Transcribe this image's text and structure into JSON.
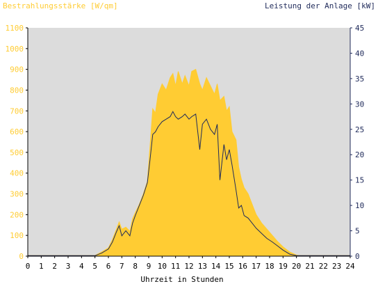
{
  "chart_data": {
    "type": "area",
    "title_left": "Bestrahlungsstärke [W/qm]",
    "title_right": "Leistung der Anlage [kW]",
    "xlabel": "Uhrzeit in Stunden",
    "x_ticks": [
      "0",
      "1",
      "2",
      "3",
      "4",
      "5",
      "6",
      "7",
      "8",
      "9",
      "10",
      "11",
      "12",
      "13",
      "14",
      "15",
      "16",
      "17",
      "18",
      "19",
      "20",
      "21",
      "22",
      "23",
      "24"
    ],
    "y_left_ticks": [
      "0",
      "100",
      "200",
      "300",
      "400",
      "500",
      "600",
      "700",
      "800",
      "900",
      "1000",
      "1100"
    ],
    "y_right_ticks": [
      "0",
      "5",
      "10",
      "15",
      "20",
      "25",
      "30",
      "35",
      "40",
      "45"
    ],
    "y_left_range": [
      0,
      1100
    ],
    "y_right_range": [
      0,
      45
    ],
    "x_range": [
      0,
      24
    ],
    "grid": false,
    "colors": {
      "irradiance": "#ffcc33",
      "power": "#1f2a5a",
      "left_axis": "#ffcc33",
      "right_axis": "#1f2a5a",
      "plot_bg": "#dcdcdc",
      "frame": "#000000"
    },
    "series": [
      {
        "name": "Bestrahlungsstärke [W/qm]",
        "axis": "left",
        "x": [
          0,
          5.0,
          5.5,
          6.0,
          6.3,
          6.6,
          6.8,
          7.0,
          7.3,
          7.6,
          7.8,
          8.0,
          8.3,
          8.6,
          8.9,
          9.1,
          9.3,
          9.5,
          9.7,
          10.0,
          10.3,
          10.6,
          10.8,
          11.0,
          11.2,
          11.5,
          11.7,
          12.0,
          12.2,
          12.5,
          12.8,
          13.0,
          13.3,
          13.6,
          13.9,
          14.1,
          14.3,
          14.6,
          14.8,
          15.0,
          15.2,
          15.5,
          15.7,
          15.9,
          16.1,
          16.4,
          16.7,
          17.0,
          17.4,
          17.8,
          18.2,
          18.6,
          19.0,
          19.5,
          20.0,
          20.2,
          24.0
        ],
        "y": [
          3,
          3,
          20,
          40,
          80,
          130,
          165,
          130,
          140,
          120,
          180,
          210,
          250,
          300,
          360,
          530,
          710,
          690,
          780,
          830,
          800,
          860,
          880,
          820,
          890,
          830,
          870,
          820,
          890,
          900,
          830,
          800,
          860,
          820,
          780,
          830,
          750,
          770,
          700,
          720,
          600,
          560,
          430,
          370,
          330,
          300,
          250,
          200,
          160,
          130,
          100,
          70,
          45,
          20,
          5,
          3,
          3
        ]
      },
      {
        "name": "Leistung der Anlage [kW]",
        "axis": "right",
        "x": [
          0,
          5.0,
          5.5,
          6.0,
          6.3,
          6.6,
          6.8,
          7.0,
          7.3,
          7.6,
          7.8,
          8.0,
          8.3,
          8.6,
          8.9,
          9.1,
          9.3,
          9.5,
          9.7,
          10.0,
          10.3,
          10.6,
          10.8,
          11.0,
          11.2,
          11.5,
          11.7,
          12.0,
          12.2,
          12.5,
          12.8,
          13.0,
          13.3,
          13.6,
          13.9,
          14.1,
          14.3,
          14.6,
          14.8,
          15.0,
          15.2,
          15.5,
          15.7,
          15.9,
          16.1,
          16.4,
          16.7,
          17.0,
          17.4,
          17.8,
          18.2,
          18.6,
          19.0,
          19.5,
          20.0,
          20.2,
          24.0
        ],
        "y": [
          0.1,
          0.1,
          0.6,
          1.4,
          2.8,
          4.8,
          6.0,
          4.0,
          5.0,
          4.0,
          6.5,
          8.0,
          10.0,
          12.0,
          14.5,
          19.0,
          24.0,
          24.5,
          25.5,
          26.5,
          27.0,
          27.5,
          28.5,
          27.5,
          27.0,
          27.5,
          28.0,
          27.0,
          27.5,
          28.0,
          21.0,
          26.0,
          27.0,
          25.0,
          24.0,
          26.0,
          15.0,
          22.0,
          19.0,
          21.0,
          18.0,
          13.0,
          9.5,
          10.0,
          8.0,
          7.5,
          6.5,
          5.5,
          4.5,
          3.5,
          2.8,
          2.0,
          1.2,
          0.4,
          0.1,
          0.1,
          0.1
        ]
      }
    ]
  }
}
